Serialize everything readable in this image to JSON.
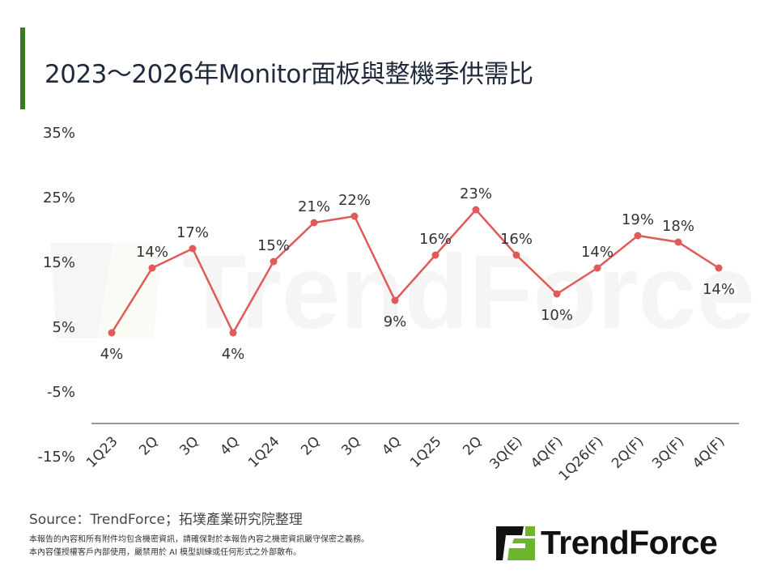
{
  "title": "2023～2026年Monitor面板與整機季供需比",
  "chart_data": {
    "type": "line",
    "title": "2023～2026年Monitor面板與整機季供需比",
    "categories": [
      "1Q23",
      "2Q",
      "3Q",
      "4Q",
      "1Q24",
      "2Q",
      "3Q",
      "4Q",
      "1Q25",
      "2Q",
      "3Q(E)",
      "4Q(F)",
      "1Q26(F)",
      "2Q(F)",
      "3Q(F)",
      "4Q(F)"
    ],
    "values": [
      4,
      14,
      17,
      4,
      15,
      21,
      22,
      9,
      16,
      23,
      16,
      10,
      14,
      19,
      18,
      14
    ],
    "data_labels": [
      "4%",
      "14%",
      "17%",
      "4%",
      "15%",
      "21%",
      "22%",
      "9%",
      "16%",
      "23%",
      "16%",
      "10%",
      "14%",
      "19%",
      "18%",
      "14%"
    ],
    "y_ticks": [
      "35%",
      "25%",
      "15%",
      "5%",
      "-5%",
      "-15%"
    ],
    "ylim": [
      -15,
      35
    ],
    "grid": false,
    "line_color": "#e05a5a",
    "xlabel": "",
    "ylabel": ""
  },
  "watermark": "TrendForce",
  "source": "Source：TrendForce；拓墣產業研究院整理",
  "disclaimer": [
    "本報告的內容和所有附件均包含機密資訊，請確保對於本報告內容之機密資訊嚴守保密之義務。",
    "本內容僅授權客戶內部使用，嚴禁用於 AI 模型訓練或任何形式之外部散布。"
  ],
  "logo": {
    "text": "TrendForce",
    "green": "#6cb52d"
  }
}
